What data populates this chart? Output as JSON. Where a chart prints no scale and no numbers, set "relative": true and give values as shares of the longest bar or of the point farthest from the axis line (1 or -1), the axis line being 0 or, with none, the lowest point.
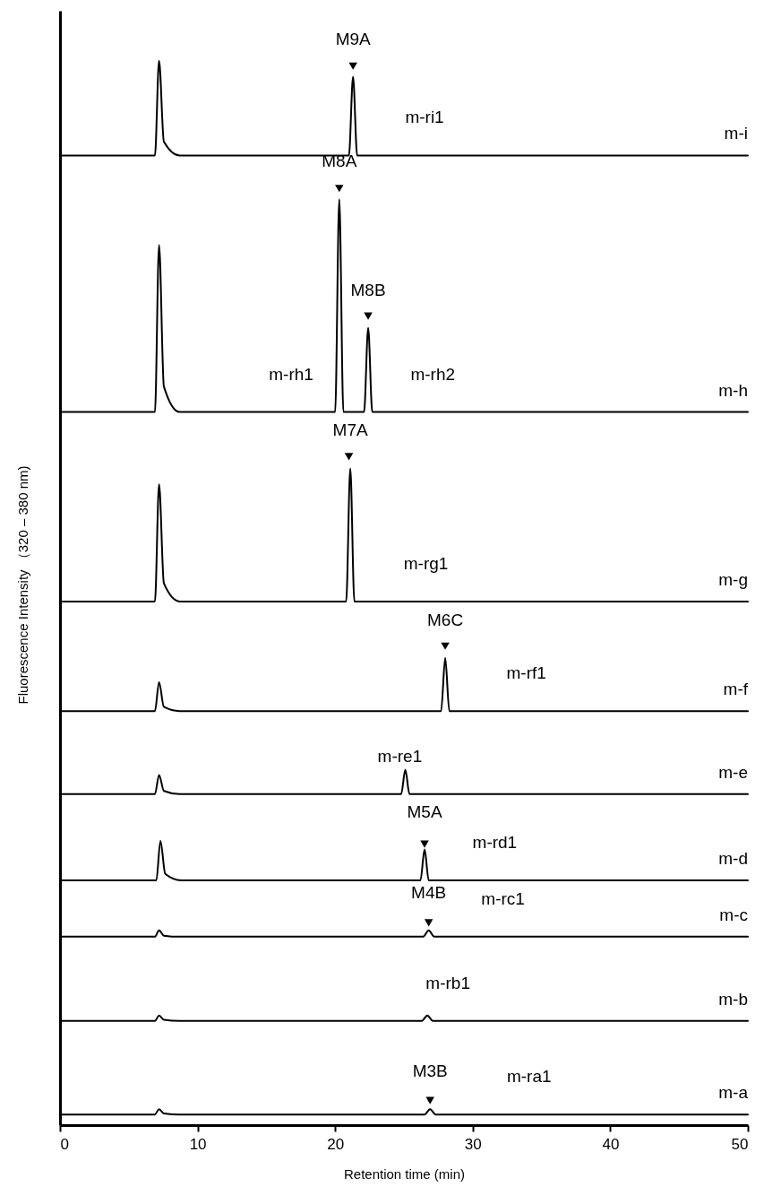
{
  "chart_data": {
    "type": "line",
    "relative": true,
    "xlabel": "Retention time (min)",
    "ylabel": "Fluorescence Intensity （320 – 380 nm)",
    "xlim": [
      0,
      50
    ],
    "xticks": [
      0,
      10,
      20,
      30,
      40,
      50
    ],
    "grid": false,
    "line_style": "solid",
    "series": [
      {
        "name": "m-i",
        "color": "#000000",
        "x": [
          0,
          6.9,
          7.2,
          7.55,
          8.7,
          21.0,
          21.3,
          21.6,
          50
        ],
        "values": [
          0.911,
          0.911,
          1.0,
          0.924,
          0.911,
          0.911,
          0.985,
          0.911,
          0.911
        ]
      },
      {
        "name": "m-h",
        "color": "#000000",
        "x": [
          0,
          6.9,
          7.2,
          7.55,
          8.7,
          20.0,
          20.3,
          20.6,
          21.4,
          22.1,
          22.4,
          22.7,
          50
        ],
        "values": [
          0.67,
          0.67,
          0.827,
          0.694,
          0.67,
          0.67,
          0.87,
          0.67,
          0.67,
          0.67,
          0.749,
          0.67,
          0.67
        ]
      },
      {
        "name": "m-g",
        "color": "#000000",
        "x": [
          0,
          6.9,
          7.2,
          7.55,
          8.7,
          20.8,
          21.1,
          21.4,
          50
        ],
        "values": [
          0.492,
          0.492,
          0.602,
          0.509,
          0.492,
          0.492,
          0.617,
          0.492,
          0.492
        ]
      },
      {
        "name": "m-f",
        "color": "#000000",
        "x": [
          0,
          6.9,
          7.2,
          7.55,
          8.7,
          27.7,
          28.0,
          28.3,
          50
        ],
        "values": [
          0.389,
          0.389,
          0.416,
          0.393,
          0.389,
          0.389,
          0.439,
          0.389,
          0.389
        ]
      },
      {
        "name": "m-e",
        "color": "#000000",
        "x": [
          0,
          6.9,
          7.2,
          7.55,
          8.7,
          24.8,
          25.1,
          25.4,
          50
        ],
        "values": [
          0.311,
          0.311,
          0.329,
          0.314,
          0.311,
          0.311,
          0.334,
          0.311,
          0.311
        ]
      },
      {
        "name": "m-d",
        "color": "#000000",
        "x": [
          0,
          7.0,
          7.3,
          7.65,
          8.8,
          26.2,
          26.5,
          26.8,
          50
        ],
        "values": [
          0.23,
          0.23,
          0.267,
          0.236,
          0.23,
          0.23,
          0.259,
          0.23,
          0.23
        ]
      },
      {
        "name": "m-c",
        "color": "#000000",
        "x": [
          0,
          6.9,
          7.2,
          7.55,
          8.7,
          26.4,
          26.8,
          27.2,
          50
        ],
        "values": [
          0.177,
          0.177,
          0.183,
          0.178,
          0.177,
          0.177,
          0.183,
          0.177,
          0.177
        ]
      },
      {
        "name": "m-b",
        "color": "#000000",
        "x": [
          0,
          6.9,
          7.2,
          7.55,
          8.7,
          26.3,
          26.7,
          27.1,
          50
        ],
        "values": [
          0.098,
          0.098,
          0.103,
          0.099,
          0.098,
          0.098,
          0.103,
          0.098,
          0.098
        ]
      },
      {
        "name": "m-a",
        "color": "#000000",
        "x": [
          0,
          6.9,
          7.2,
          7.55,
          8.7,
          26.5,
          26.9,
          27.3,
          50
        ],
        "values": [
          0.01,
          0.01,
          0.015,
          0.011,
          0.01,
          0.01,
          0.015,
          0.01,
          0.01
        ]
      },
      {
        "type": "scatter",
        "marker": "triangle",
        "color": "#000000",
        "x": [
          21.3,
          20.3,
          22.4,
          21.0,
          28.0,
          26.5,
          26.8,
          26.9
        ],
        "values": [
          0.995,
          0.88,
          0.76,
          0.628,
          0.45,
          0.264,
          0.19,
          0.023
        ]
      }
    ],
    "annotations": [
      {
        "text": "M9A",
        "x": 21.3,
        "y": 0.985
      },
      {
        "text": "m-ri1",
        "x": 26.5,
        "y": 0.911
      },
      {
        "text": "M8A",
        "x": 20.3,
        "y": 0.87
      },
      {
        "text": "M8B",
        "x": 22.4,
        "y": 0.749
      },
      {
        "text": "m-rh1",
        "x": 16.8,
        "y": 0.67
      },
      {
        "text": "m-rh2",
        "x": 27.1,
        "y": 0.67
      },
      {
        "text": "M7A",
        "x": 21.1,
        "y": 0.617
      },
      {
        "text": "m-rg1",
        "x": 26.6,
        "y": 0.492
      },
      {
        "text": "M6C",
        "x": 28.0,
        "y": 0.439
      },
      {
        "text": "m-rf1",
        "x": 33.9,
        "y": 0.389
      },
      {
        "text": "m-re1",
        "x": 24.7,
        "y": 0.311
      },
      {
        "text": "M5A",
        "x": 26.5,
        "y": 0.259
      },
      {
        "text": "m-rd1",
        "x": 31.6,
        "y": 0.23
      },
      {
        "text": "M4B",
        "x": 26.8,
        "y": 0.183
      },
      {
        "text": "m-rc1",
        "x": 32.2,
        "y": 0.177
      },
      {
        "text": "m-rb1",
        "x": 28.2,
        "y": 0.098
      },
      {
        "text": "M3B",
        "x": 26.9,
        "y": 0.015
      },
      {
        "text": "m-ra1",
        "x": 34.1,
        "y": 0.01
      }
    ]
  }
}
